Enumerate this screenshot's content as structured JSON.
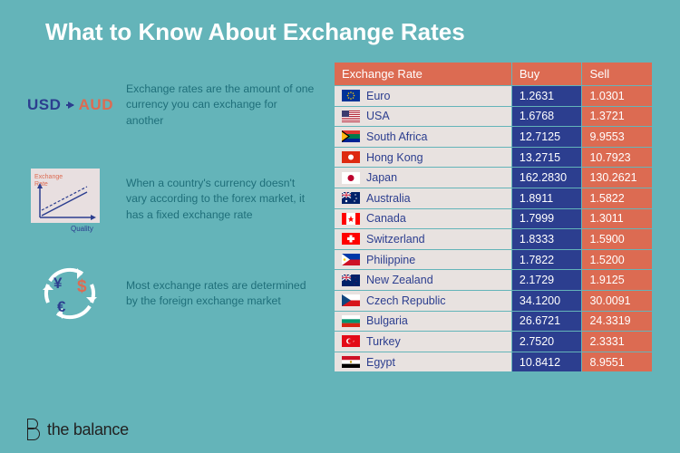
{
  "style": {
    "background_color": "#64b4b9",
    "title_color": "#ffffff",
    "fact_text_color": "#1f6f7a",
    "accent_blue": "#2c3e8f",
    "accent_red": "#dc6b52",
    "chart_bg": "#e8dfe0",
    "table_header_bg": "#dc6b52",
    "row_name_bg": "#e8e2e0",
    "row_name_text": "#2c3e8f",
    "buy_cell_bg": "#2c3e8f",
    "sell_cell_bg": "#dc6b52",
    "footer_color": "#222222"
  },
  "title": "What to Know About Exchange Rates",
  "facts": [
    {
      "icon": {
        "left_text": "USD",
        "right_text": "AUD",
        "left_color": "#2c3e8f",
        "right_color": "#dc6b52"
      },
      "text": "Exchange rates are the amount of one currency you can exchange for another"
    },
    {
      "icon": {
        "y_label": "Exchange Rate",
        "x_label": "Quality"
      },
      "text": "When a country's currency doesn't vary according to the forex market, it has a fixed exchange rate"
    },
    {
      "icon": {
        "symbols": [
          "¥",
          "$",
          "€"
        ]
      },
      "text": "Most exchange rates are determined by the foreign exchange market"
    }
  ],
  "table": {
    "header": {
      "name": "Exchange Rate",
      "buy": "Buy",
      "sell": "Sell"
    },
    "rows": [
      {
        "flag": "eu",
        "country": "Euro",
        "buy": "1.2631",
        "sell": "1.0301"
      },
      {
        "flag": "us",
        "country": "USA",
        "buy": "1.6768",
        "sell": "1.3721"
      },
      {
        "flag": "za",
        "country": "South Africa",
        "buy": "12.7125",
        "sell": "9.9553"
      },
      {
        "flag": "hk",
        "country": "Hong Kong",
        "buy": "13.2715",
        "sell": "10.7923"
      },
      {
        "flag": "jp",
        "country": "Japan",
        "buy": "162.2830",
        "sell": "130.2621"
      },
      {
        "flag": "au",
        "country": "Australia",
        "buy": "1.8911",
        "sell": "1.5822"
      },
      {
        "flag": "ca",
        "country": "Canada",
        "buy": "1.7999",
        "sell": "1.3011"
      },
      {
        "flag": "ch",
        "country": "Switzerland",
        "buy": "1.8333",
        "sell": "1.5900"
      },
      {
        "flag": "ph",
        "country": "Philippine",
        "buy": "1.7822",
        "sell": "1.5200"
      },
      {
        "flag": "nz",
        "country": "New Zealand",
        "buy": "2.1729",
        "sell": "1.9125"
      },
      {
        "flag": "cz",
        "country": "Czech Republic",
        "buy": "34.1200",
        "sell": "30.0091"
      },
      {
        "flag": "bg",
        "country": "Bulgaria",
        "buy": "26.6721",
        "sell": "24.3319"
      },
      {
        "flag": "tr",
        "country": "Turkey",
        "buy": "2.7520",
        "sell": "2.3331"
      },
      {
        "flag": "eg",
        "country": "Egypt",
        "buy": "10.8412",
        "sell": "8.9551"
      }
    ]
  },
  "footer": {
    "brand": "the balance"
  }
}
